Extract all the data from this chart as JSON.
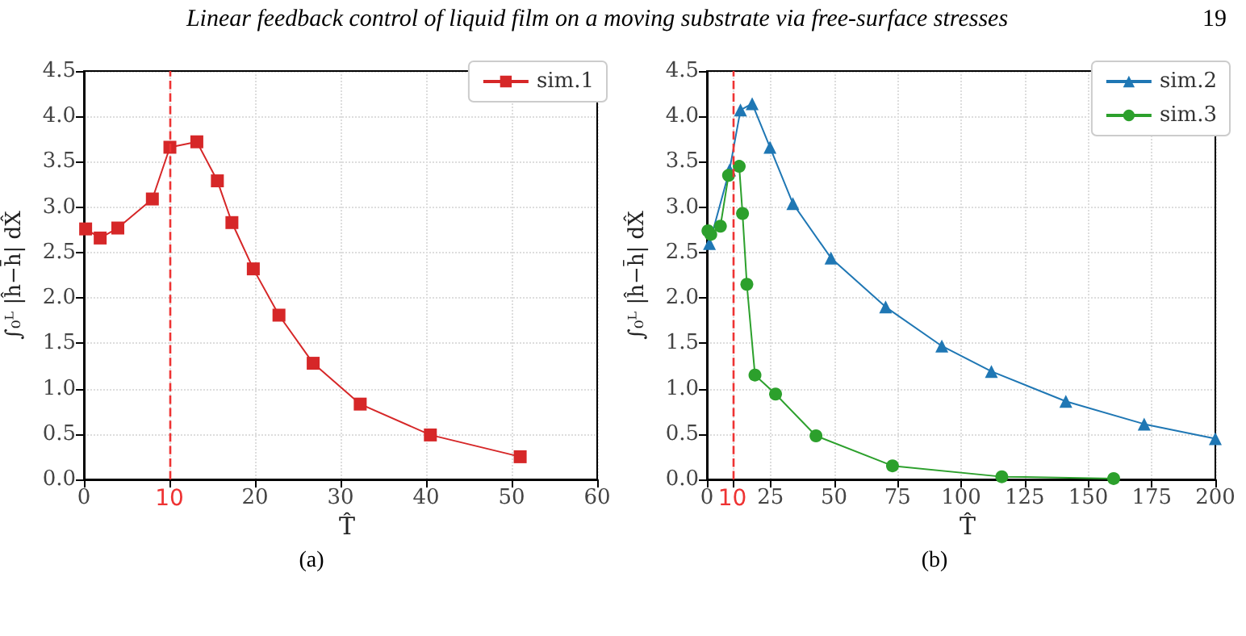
{
  "chart_data": [
    {
      "type": "line",
      "subtitle": "(a)",
      "annotations": [
        "Linear feedback control of liquid film on a moving substrate via free-surface stresses",
        "19"
      ],
      "xlabel": "T̂",
      "ylabel": "∫₀ᴸ |ĥ−h̄| dX̂",
      "series": [
        {
          "name": "sim.1",
          "color": "#d62728",
          "marker": "square",
          "x": [
            0.2,
            1.9,
            3.96,
            8.0,
            10.05,
            13.2,
            15.6,
            17.3,
            19.8,
            22.8,
            26.8,
            32.3,
            40.5,
            51.0
          ],
          "values": [
            2.76,
            2.66,
            2.77,
            3.09,
            3.66,
            3.72,
            3.29,
            2.83,
            2.32,
            1.81,
            1.28,
            0.83,
            0.49,
            0.25
          ]
        }
      ],
      "xlim": [
        0,
        60
      ],
      "xticks": [
        0,
        {
          "value": 10,
          "label": "10"
        },
        20,
        30,
        40,
        50,
        60
      ],
      "ylim": [
        0,
        4.5
      ],
      "yticks": [
        {
          "value": 0,
          "label": "0.0"
        },
        0.5,
        {
          "value": 1,
          "label": "1.0"
        },
        1.5,
        {
          "value": 2,
          "label": "2.0"
        },
        2.5,
        {
          "value": 3,
          "label": "3.0"
        },
        3.5,
        {
          "value": 4,
          "label": "4.0"
        },
        4.5
      ],
      "ref_lines": [
        {
          "axis": "x",
          "value": 10,
          "color": "#ee3333",
          "line_style": "dashed"
        }
      ],
      "grid": true,
      "legend": "top right"
    },
    {
      "type": "line",
      "subtitle": "(b)",
      "xlabel": "T̂",
      "ylabel": "∫₀ᴸ |ĥ−h̄| dX̂",
      "series": [
        {
          "name": "sim.2",
          "color": "#1f77b4",
          "marker": "triangle",
          "x": [
            1,
            8.9,
            13.2,
            17.8,
            24.8,
            33.8,
            48.8,
            70.3,
            92.4,
            111.9,
            141.2,
            172,
            200
          ],
          "values": [
            2.6,
            3.41,
            4.07,
            4.14,
            3.66,
            3.04,
            2.44,
            1.9,
            1.47,
            1.19,
            0.86,
            0.61,
            0.45
          ]
        },
        {
          "name": "sim.3",
          "color": "#2ca02c",
          "marker": "circle",
          "x": [
            0.4,
            1.5,
            5.3,
            8.5,
            12.7,
            14,
            15.7,
            18.9,
            27,
            42.9,
            73,
            116,
            160
          ],
          "values": [
            2.74,
            2.7,
            2.79,
            3.35,
            3.45,
            2.93,
            2.15,
            1.15,
            0.94,
            0.48,
            0.15,
            0.03,
            0.01
          ]
        }
      ],
      "xlim": [
        0,
        200
      ],
      "xticks": [
        0,
        {
          "value": 10,
          "label": "10"
        },
        25,
        50,
        75,
        100,
        125,
        150,
        175,
        200
      ],
      "ylim": [
        0,
        4.5
      ],
      "yticks": [
        {
          "value": 0,
          "label": "0.0"
        },
        0.5,
        {
          "value": 1,
          "label": "1.0"
        },
        1.5,
        {
          "value": 2,
          "label": "2.0"
        },
        2.5,
        {
          "value": 3,
          "label": "3.0"
        },
        3.5,
        {
          "value": 4,
          "label": "4.0"
        },
        4.5
      ],
      "ref_lines": [
        {
          "axis": "x",
          "value": 10,
          "color": "#ee3333",
          "line_style": "dashed"
        }
      ],
      "grid": true,
      "legend": "top right"
    }
  ]
}
